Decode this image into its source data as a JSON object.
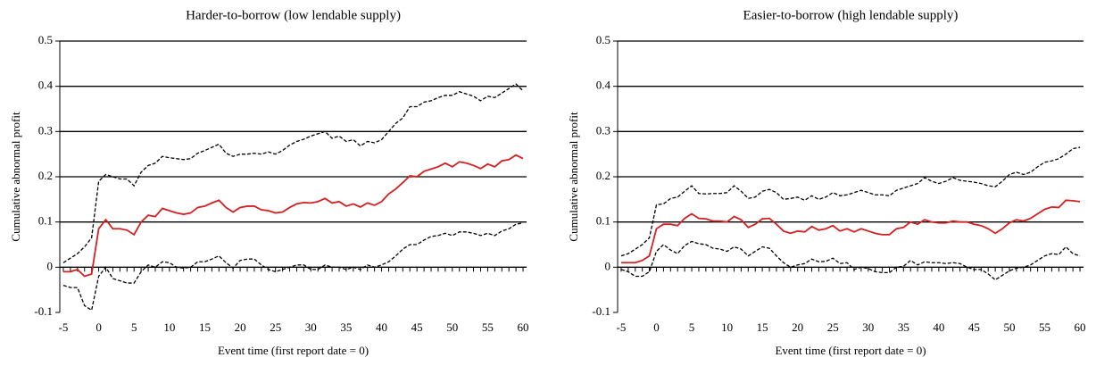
{
  "chart_data": [
    {
      "type": "line",
      "title": "Harder-to-borrow (low lendable supply)",
      "x_label": "Event time (first report date = 0)",
      "y_label": "Cumulative abnormal profit",
      "x": [
        -5,
        -4,
        -3,
        -2,
        -1,
        0,
        1,
        2,
        3,
        4,
        5,
        6,
        7,
        8,
        9,
        10,
        11,
        12,
        13,
        14,
        15,
        16,
        17,
        18,
        19,
        20,
        21,
        22,
        23,
        24,
        25,
        26,
        27,
        28,
        29,
        30,
        31,
        32,
        33,
        34,
        35,
        36,
        37,
        38,
        39,
        40,
        41,
        42,
        43,
        44,
        45,
        46,
        47,
        48,
        49,
        50,
        51,
        52,
        53,
        54,
        55,
        56,
        57,
        58,
        59,
        60
      ],
      "xlim": [
        -5.5,
        60.5
      ],
      "xticks": [
        -5,
        0,
        5,
        10,
        15,
        20,
        25,
        30,
        35,
        40,
        45,
        50,
        55,
        60
      ],
      "ylim": [
        -0.1,
        0.5
      ],
      "yticks": [
        -0.1,
        0,
        0.1,
        0.2,
        0.3,
        0.4,
        0.5
      ],
      "grid": true,
      "series": [
        {
          "color": "#d42020",
          "style": "solid",
          "values": [
            -0.01,
            -0.01,
            -0.005,
            -0.02,
            -0.015,
            0.085,
            0.105,
            0.085,
            0.085,
            0.082,
            0.072,
            0.1,
            0.115,
            0.112,
            0.13,
            0.125,
            0.12,
            0.117,
            0.12,
            0.132,
            0.135,
            0.142,
            0.148,
            0.132,
            0.122,
            0.132,
            0.135,
            0.135,
            0.127,
            0.125,
            0.12,
            0.122,
            0.132,
            0.14,
            0.143,
            0.142,
            0.145,
            0.152,
            0.142,
            0.145,
            0.135,
            0.14,
            0.133,
            0.142,
            0.137,
            0.145,
            0.162,
            0.173,
            0.187,
            0.202,
            0.2,
            0.212,
            0.217,
            0.222,
            0.23,
            0.222,
            0.233,
            0.23,
            0.225,
            0.218,
            0.228,
            0.222,
            0.235,
            0.238,
            0.248,
            0.24
          ]
        },
        {
          "color": "#000000",
          "style": "dashed",
          "values": [
            0.01,
            0.02,
            0.03,
            0.045,
            0.065,
            0.19,
            0.205,
            0.2,
            0.195,
            0.195,
            0.18,
            0.21,
            0.225,
            0.23,
            0.245,
            0.242,
            0.24,
            0.238,
            0.24,
            0.252,
            0.258,
            0.265,
            0.272,
            0.252,
            0.245,
            0.25,
            0.25,
            0.252,
            0.25,
            0.255,
            0.25,
            0.258,
            0.27,
            0.278,
            0.283,
            0.29,
            0.295,
            0.3,
            0.285,
            0.29,
            0.278,
            0.282,
            0.268,
            0.278,
            0.275,
            0.282,
            0.3,
            0.318,
            0.33,
            0.355,
            0.355,
            0.365,
            0.368,
            0.375,
            0.38,
            0.38,
            0.388,
            0.383,
            0.378,
            0.368,
            0.378,
            0.375,
            0.385,
            0.395,
            0.405,
            0.39
          ]
        },
        {
          "color": "#000000",
          "style": "dashed",
          "values": [
            -0.04,
            -0.045,
            -0.045,
            -0.085,
            -0.095,
            -0.02,
            0,
            -0.025,
            -0.03,
            -0.035,
            -0.035,
            -0.01,
            0.005,
            0,
            0.012,
            0.01,
            0,
            -0.002,
            0,
            0.012,
            0.012,
            0.018,
            0.025,
            0.01,
            -0.002,
            0.015,
            0.018,
            0.018,
            0.005,
            -0.005,
            -0.01,
            -0.005,
            0,
            0.005,
            0.005,
            -0.005,
            -0.005,
            0.005,
            0,
            0,
            -0.005,
            0,
            -0.005,
            0.005,
            0,
            0.005,
            0.012,
            0.025,
            0.04,
            0.05,
            0.05,
            0.06,
            0.068,
            0.07,
            0.075,
            0.07,
            0.078,
            0.078,
            0.075,
            0.07,
            0.075,
            0.07,
            0.08,
            0.085,
            0.095,
            0.098
          ]
        }
      ]
    },
    {
      "type": "line",
      "title": "Easier-to-borrow (high lendable supply)",
      "x_label": "Event time (first report date = 0)",
      "y_label": "Cumulative abnormal profit",
      "x": [
        -5,
        -4,
        -3,
        -2,
        -1,
        0,
        1,
        2,
        3,
        4,
        5,
        6,
        7,
        8,
        9,
        10,
        11,
        12,
        13,
        14,
        15,
        16,
        17,
        18,
        19,
        20,
        21,
        22,
        23,
        24,
        25,
        26,
        27,
        28,
        29,
        30,
        31,
        32,
        33,
        34,
        35,
        36,
        37,
        38,
        39,
        40,
        41,
        42,
        43,
        44,
        45,
        46,
        47,
        48,
        49,
        50,
        51,
        52,
        53,
        54,
        55,
        56,
        57,
        58,
        59,
        60
      ],
      "xlim": [
        -5.5,
        60.5
      ],
      "xticks": [
        -5,
        0,
        5,
        10,
        15,
        20,
        25,
        30,
        35,
        40,
        45,
        50,
        55,
        60
      ],
      "ylim": [
        -0.1,
        0.5
      ],
      "yticks": [
        -0.1,
        0,
        0.1,
        0.2,
        0.3,
        0.4,
        0.5
      ],
      "grid": true,
      "series": [
        {
          "color": "#d42020",
          "style": "solid",
          "values": [
            0.01,
            0.01,
            0.01,
            0.015,
            0.025,
            0.085,
            0.095,
            0.095,
            0.092,
            0.108,
            0.118,
            0.108,
            0.107,
            0.102,
            0.102,
            0.1,
            0.112,
            0.105,
            0.088,
            0.095,
            0.107,
            0.108,
            0.095,
            0.08,
            0.075,
            0.08,
            0.078,
            0.09,
            0.082,
            0.085,
            0.092,
            0.08,
            0.085,
            0.078,
            0.085,
            0.08,
            0.075,
            0.072,
            0.072,
            0.085,
            0.088,
            0.1,
            0.095,
            0.105,
            0.1,
            0.098,
            0.098,
            0.102,
            0.1,
            0.1,
            0.095,
            0.092,
            0.085,
            0.075,
            0.085,
            0.098,
            0.105,
            0.102,
            0.108,
            0.118,
            0.128,
            0.133,
            0.132,
            0.148,
            0.147,
            0.145
          ]
        },
        {
          "color": "#000000",
          "style": "dashed",
          "values": [
            0.025,
            0.03,
            0.04,
            0.05,
            0.065,
            0.138,
            0.14,
            0.152,
            0.155,
            0.168,
            0.18,
            0.163,
            0.162,
            0.163,
            0.163,
            0.165,
            0.18,
            0.168,
            0.152,
            0.155,
            0.168,
            0.172,
            0.165,
            0.15,
            0.152,
            0.155,
            0.148,
            0.158,
            0.15,
            0.155,
            0.165,
            0.158,
            0.16,
            0.165,
            0.17,
            0.165,
            0.16,
            0.16,
            0.158,
            0.17,
            0.175,
            0.18,
            0.185,
            0.198,
            0.19,
            0.185,
            0.19,
            0.198,
            0.192,
            0.19,
            0.188,
            0.185,
            0.18,
            0.178,
            0.19,
            0.205,
            0.21,
            0.205,
            0.21,
            0.222,
            0.232,
            0.235,
            0.24,
            0.25,
            0.262,
            0.265
          ]
        },
        {
          "color": "#000000",
          "style": "dashed",
          "values": [
            -0.005,
            -0.01,
            -0.02,
            -0.02,
            -0.01,
            0.035,
            0.05,
            0.038,
            0.03,
            0.048,
            0.057,
            0.052,
            0.05,
            0.042,
            0.04,
            0.035,
            0.045,
            0.04,
            0.025,
            0.035,
            0.045,
            0.042,
            0.025,
            0.01,
            0,
            0.005,
            0.008,
            0.018,
            0.012,
            0.013,
            0.02,
            0.008,
            0.01,
            -0.005,
            0,
            -0.003,
            -0.01,
            -0.012,
            -0.012,
            0,
            0.002,
            0.015,
            0.005,
            0.012,
            0.01,
            0.01,
            0.008,
            0.01,
            0.008,
            0,
            -0.005,
            -0.005,
            -0.015,
            -0.028,
            -0.018,
            -0.008,
            -0.002,
            0,
            0.005,
            0.015,
            0.025,
            0.03,
            0.028,
            0.045,
            0.03,
            0.025
          ]
        }
      ]
    }
  ]
}
